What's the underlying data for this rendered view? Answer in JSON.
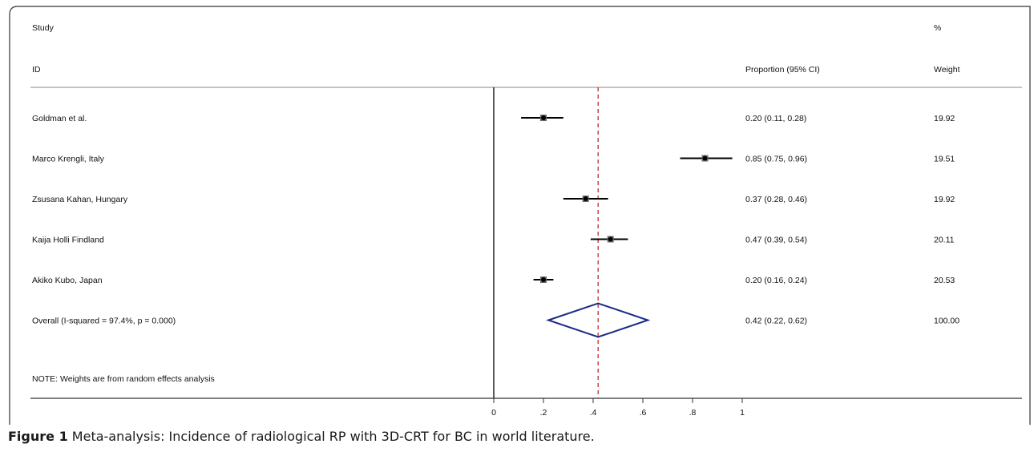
{
  "header": {
    "study_label": "Study",
    "id_label": "ID",
    "ci_label": "Proportion (95% CI)",
    "pct_label": "%",
    "weight_label": "Weight"
  },
  "note": "NOTE: Weights are from random effects analysis",
  "caption": {
    "label": "Figure 1",
    "text": "Meta-analysis: Incidence of radiological RP with 3D-CRT for BC in world literature."
  },
  "chart_data": {
    "type": "forest",
    "x_ticks": [
      "0",
      ".2",
      ".4",
      ".6",
      ".8",
      "1"
    ],
    "x_tick_values": [
      0,
      0.2,
      0.4,
      0.6,
      0.8,
      1
    ],
    "xlim": [
      0,
      1
    ],
    "null_line": 0,
    "reference_line": 0.42,
    "studies": [
      {
        "id": "Goldman et al.",
        "estimate": 0.2,
        "lower": 0.11,
        "upper": 0.28,
        "ci_text": "0.20 (0.11, 0.28)",
        "weight": "19.92"
      },
      {
        "id": "Marco Krengli, Italy",
        "estimate": 0.85,
        "lower": 0.75,
        "upper": 0.96,
        "ci_text": "0.85 (0.75, 0.96)",
        "weight": "19.51"
      },
      {
        "id": "Zsusana Kahan, Hungary",
        "estimate": 0.37,
        "lower": 0.28,
        "upper": 0.46,
        "ci_text": "0.37 (0.28, 0.46)",
        "weight": "19.92"
      },
      {
        "id": "Kaija Holli Findland",
        "estimate": 0.47,
        "lower": 0.39,
        "upper": 0.54,
        "ci_text": "0.47 (0.39, 0.54)",
        "weight": "20.11"
      },
      {
        "id": "Akiko Kubo, Japan",
        "estimate": 0.2,
        "lower": 0.16,
        "upper": 0.24,
        "ci_text": "0.20 (0.16, 0.24)",
        "weight": "20.53"
      }
    ],
    "overall": {
      "id": "Overall  (I-squared = 97.4%, p = 0.000)",
      "estimate": 0.42,
      "lower": 0.22,
      "upper": 0.62,
      "ci_text": "0.42 (0.22, 0.62)",
      "weight": "100.00"
    },
    "colors": {
      "diamond": "#1c2a8a",
      "reference_line": "#c0282d",
      "marks": "#000000",
      "frame": "#333333"
    }
  }
}
